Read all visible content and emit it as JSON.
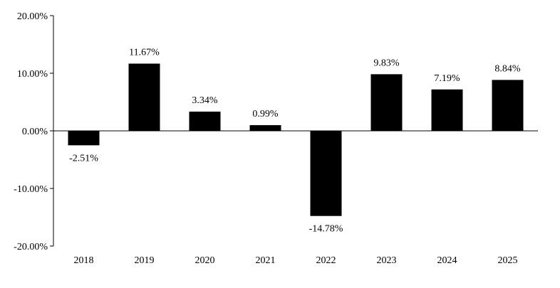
{
  "chart_data": {
    "type": "bar",
    "title": "",
    "xlabel": "",
    "ylabel": "",
    "categories": [
      "2018",
      "2019",
      "2020",
      "2021",
      "2022",
      "2023",
      "2024",
      "2025"
    ],
    "values": [
      -2.51,
      11.67,
      3.34,
      0.99,
      -14.78,
      9.83,
      7.19,
      8.84
    ],
    "value_labels": [
      "-2.51%",
      "11.67%",
      "3.34%",
      "0.99%",
      "-14.78%",
      "9.83%",
      "7.19%",
      "8.84%"
    ],
    "ylim": [
      -20,
      20
    ],
    "yticks": [
      20,
      10,
      0,
      -10,
      -20
    ],
    "ytick_labels": [
      "20.00%",
      "10.00%",
      "0.00%",
      "-10.00%",
      "-20.00%"
    ],
    "bar_color": "#000000",
    "grid": false,
    "legend": "none"
  }
}
